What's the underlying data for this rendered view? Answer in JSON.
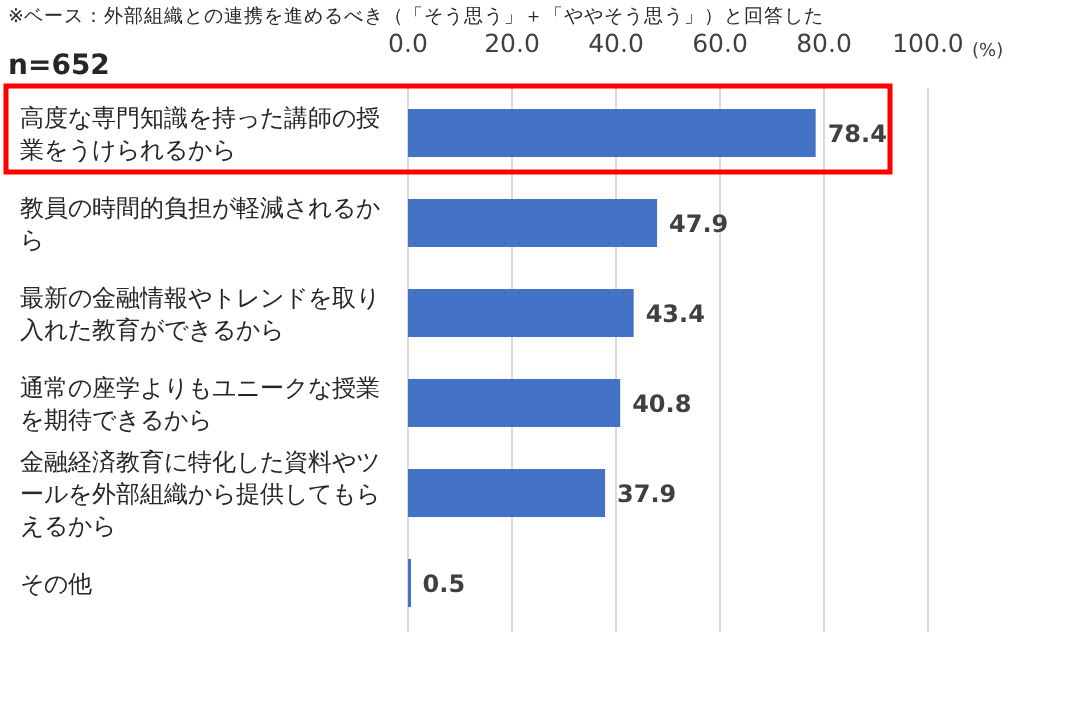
{
  "chart_data": {
    "type": "bar",
    "orientation": "horizontal",
    "title": "※ベース：外部組織との連携を進めるべき（「そう思う」＋「ややそう思う」）と回答した",
    "subtitle": "n=652",
    "xlabel": "(%)",
    "categories": [
      "高度な専門知識を持った講師の授業をうけられるから",
      "教員の時間的負担が軽減されるから",
      "最新の金融情報やトレンドを取り入れた教育ができるから",
      "通常の座学よりもユニークな授業を期待できるから",
      "金融経済教育に特化した資料やツールを外部組織から提供してもらえるから",
      "その他"
    ],
    "values": [
      78.4,
      47.9,
      43.4,
      40.8,
      37.9,
      0.5
    ],
    "color": "#4472c4",
    "data_labels": true,
    "grid": "x",
    "xlim": [
      0,
      100
    ],
    "xticks": [
      {
        "value": 0,
        "label": "0.0"
      },
      {
        "value": 20,
        "label": "20.0"
      },
      {
        "value": 40,
        "label": "40.0"
      },
      {
        "value": 60,
        "label": "60.0"
      },
      {
        "value": 80,
        "label": "80.0"
      },
      {
        "value": 100,
        "label": "100.0"
      }
    ]
  }
}
